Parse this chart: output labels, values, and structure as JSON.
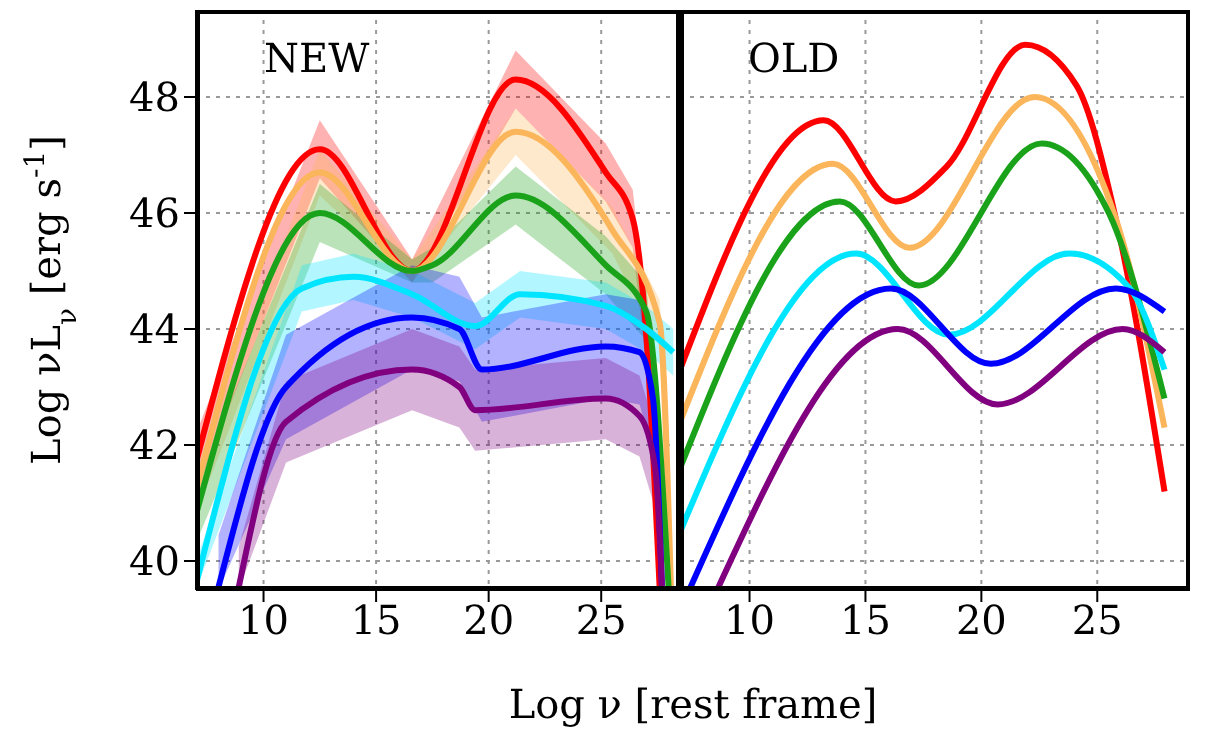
{
  "chart_data": [
    {
      "type": "line",
      "title": "NEW",
      "xlabel": "Log ν [rest frame]",
      "ylabel": "Log νL$_{ν}$ [erg s$^{-1}$]",
      "xlim": [
        7,
        28.5
      ],
      "xticks": [
        10,
        15,
        20,
        25
      ],
      "ylim": [
        39.5,
        49.5
      ],
      "yticks": [
        40,
        42,
        44,
        46,
        48
      ],
      "grid": true,
      "series": [
        {
          "color": "#ff0000",
          "x": [
            7,
            12.5,
            16.6,
            21.2,
            25.2,
            26.4,
            27,
            27.6
          ],
          "values": [
            41.7,
            47.1,
            45,
            48.3,
            46.7,
            45.9,
            43.9,
            39.5
          ],
          "lower": [
            41.2,
            46.6,
            44.8,
            47.8,
            46.2,
            45.4,
            43.4,
            39.5
          ],
          "upper": [
            42.2,
            47.6,
            45.2,
            48.8,
            47.2,
            46.4,
            44.4,
            40
          ]
        },
        {
          "color": "#fbb55a",
          "x": [
            7,
            12.5,
            16.6,
            21.2,
            25.5,
            27.6,
            28.1
          ],
          "values": [
            41.2,
            46.7,
            45,
            47.4,
            45.7,
            44.1,
            39.5
          ],
          "lower": [
            40.8,
            46.3,
            44.8,
            47,
            45.3,
            43.7,
            39.5
          ],
          "upper": [
            41.6,
            47.1,
            45.2,
            47.8,
            46.1,
            44.5,
            39.9
          ]
        },
        {
          "color": "#1aa31a",
          "x": [
            7,
            12.5,
            16.6,
            17.5,
            21.2,
            25.2,
            27,
            28
          ],
          "values": [
            40.8,
            46,
            45,
            45.1,
            46.3,
            45.1,
            44.3,
            39.5
          ],
          "lower": [
            40.3,
            45.5,
            44.8,
            44.8,
            45.8,
            44.6,
            43.8,
            39.5
          ],
          "upper": [
            41.3,
            46.5,
            45.2,
            45.4,
            46.8,
            45.6,
            44.8,
            40
          ]
        },
        {
          "color": "#00e5ff",
          "x": [
            7,
            11.7,
            14,
            16.6,
            19.4,
            21.4,
            25.2,
            27,
            28.2
          ],
          "values": [
            39.6,
            44.7,
            44.9,
            44.6,
            44.05,
            44.6,
            44.4,
            44,
            43.6
          ],
          "lower": [
            39.5,
            44.3,
            44.5,
            44.2,
            43.65,
            44.2,
            44,
            43.6,
            43.2
          ],
          "upper": [
            40,
            45.1,
            45.3,
            45,
            44.45,
            45,
            44.8,
            44.4,
            44
          ]
        },
        {
          "color": "#0000ff",
          "x": [
            8,
            11,
            16.6,
            18.7,
            19.7,
            25.2,
            26.7,
            27.3,
            27.7
          ],
          "values": [
            39.55,
            43,
            44.2,
            44,
            43.3,
            43.7,
            43.6,
            42.8,
            39.55
          ],
          "lower": [
            39.5,
            42.1,
            43.3,
            43.1,
            42.4,
            42.8,
            42.7,
            41.9,
            39.5
          ],
          "upper": [
            40.45,
            43.9,
            45.1,
            44.9,
            44.2,
            44.6,
            44.5,
            43.7,
            40.45
          ]
        },
        {
          "color": "#800080",
          "x": [
            8.9,
            11,
            16.6,
            18.7,
            19.4,
            25.2,
            26.7,
            27.4,
            27.7
          ],
          "values": [
            39.55,
            42.4,
            43.3,
            43,
            42.6,
            42.8,
            42.5,
            41.6,
            39.55
          ],
          "lower": [
            39.5,
            41.7,
            42.6,
            42.3,
            41.9,
            42.1,
            41.8,
            40.9,
            39.5
          ],
          "upper": [
            40.25,
            43.1,
            44,
            43.7,
            43.3,
            43.5,
            43.2,
            42.3,
            40.25
          ]
        }
      ]
    },
    {
      "type": "line",
      "title": "OLD",
      "xlim": [
        7,
        29
      ],
      "xticks": [
        10,
        15,
        20,
        25
      ],
      "ylim": [
        39.5,
        49.5
      ],
      "yticks": [
        40,
        42,
        44,
        46,
        48
      ],
      "grid": true,
      "tick_labels": "x",
      "series": [
        {
          "color": "#ff0000",
          "x": [
            7,
            13.2,
            16.3,
            18.5,
            21.9,
            24.1,
            25.8,
            27.9
          ],
          "values": [
            43.3,
            47.6,
            46.2,
            46.8,
            48.9,
            48.2,
            45.9,
            41.2
          ]
        },
        {
          "color": "#fbb55a",
          "x": [
            7,
            13.6,
            16.9,
            22.3,
            25.8,
            27.9
          ],
          "values": [
            42.4,
            46.85,
            45.4,
            48,
            45.9,
            42.3
          ]
        },
        {
          "color": "#1aa31a",
          "x": [
            7,
            13.9,
            17.3,
            22.6,
            25.5,
            27.9
          ],
          "values": [
            41.6,
            46.2,
            44.75,
            47.2,
            46,
            42.8
          ]
        },
        {
          "color": "#00e5ff",
          "x": [
            7,
            14.6,
            18.6,
            23.8,
            26.4,
            27.9
          ],
          "values": [
            40.5,
            45.3,
            43.9,
            45.3,
            44.7,
            43.3
          ]
        },
        {
          "color": "#0000ff",
          "x": [
            7.4,
            16.1,
            20.4,
            25.8,
            27.9
          ],
          "values": [
            39.5,
            44.7,
            43.4,
            44.7,
            44.3
          ]
        },
        {
          "color": "#800080",
          "x": [
            8.6,
            16.4,
            20.7,
            26.1,
            27.9
          ],
          "values": [
            39.5,
            44,
            42.7,
            44,
            43.6
          ]
        }
      ]
    }
  ]
}
